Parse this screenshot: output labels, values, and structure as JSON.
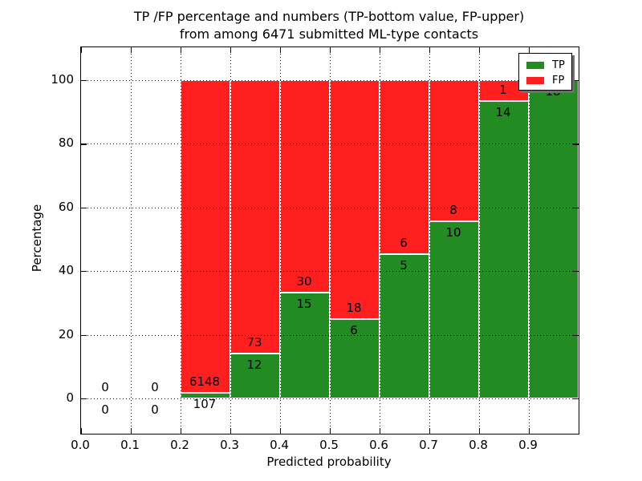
{
  "colors": {
    "tp_green": "#228B22",
    "fp_red": "#FF1F1F",
    "background": "#ffffff",
    "text": "#000000",
    "legend_shadow": "#6e6e6e"
  },
  "chart_data": {
    "type": "bar",
    "stacked": true,
    "title_line1": "TP /FP percentage and numbers (TP-bottom value, FP-upper)",
    "title_line2": "from among 6471 submitted ML-type contacts",
    "xlabel": "Predicted probability",
    "ylabel": "Percentage",
    "xlim": [
      0.0,
      1.0
    ],
    "ylim_percent_shown": [
      -11,
      110
    ],
    "grid": true,
    "grid_style": "dotted",
    "legend": {
      "position": "upper-right",
      "entries": [
        {
          "label": "TP",
          "color": "#228B22"
        },
        {
          "label": "FP",
          "color": "#FF1F1F"
        }
      ]
    },
    "x_ticks": [
      {
        "label": "0.0",
        "value": 0.0
      },
      {
        "label": "0.1",
        "value": 0.1
      },
      {
        "label": "0.2",
        "value": 0.2
      },
      {
        "label": "0.3",
        "value": 0.3
      },
      {
        "label": "0.4",
        "value": 0.4
      },
      {
        "label": "0.5",
        "value": 0.5
      },
      {
        "label": "0.6",
        "value": 0.6
      },
      {
        "label": "0.7",
        "value": 0.7
      },
      {
        "label": "0.8",
        "value": 0.8
      },
      {
        "label": "0.9",
        "value": 0.9
      }
    ],
    "unlabeled_x_tick_values": [
      1.0
    ],
    "y_ticks": [
      {
        "label": "0",
        "value": 0
      },
      {
        "label": "20",
        "value": 20
      },
      {
        "label": "40",
        "value": 40
      },
      {
        "label": "60",
        "value": 60
      },
      {
        "label": "80",
        "value": 80
      },
      {
        "label": "100",
        "value": 100
      }
    ],
    "bins": [
      {
        "x0": 0.0,
        "x1": 0.1,
        "tp": 0,
        "fp": 0
      },
      {
        "x0": 0.1,
        "x1": 0.2,
        "tp": 0,
        "fp": 0
      },
      {
        "x0": 0.2,
        "x1": 0.3,
        "tp": 107,
        "fp": 6148
      },
      {
        "x0": 0.3,
        "x1": 0.4,
        "tp": 12,
        "fp": 73
      },
      {
        "x0": 0.4,
        "x1": 0.5,
        "tp": 15,
        "fp": 30
      },
      {
        "x0": 0.5,
        "x1": 0.6,
        "tp": 6,
        "fp": 18
      },
      {
        "x0": 0.6,
        "x1": 0.7,
        "tp": 5,
        "fp": 6
      },
      {
        "x0": 0.7,
        "x1": 0.8,
        "tp": 10,
        "fp": 8
      },
      {
        "x0": 0.8,
        "x1": 0.9,
        "tp": 14,
        "fp": 1
      },
      {
        "x0": 0.9,
        "x1": 1.0,
        "tp": 18,
        "fp": 0,
        "fp_label_hidden": true
      }
    ]
  }
}
